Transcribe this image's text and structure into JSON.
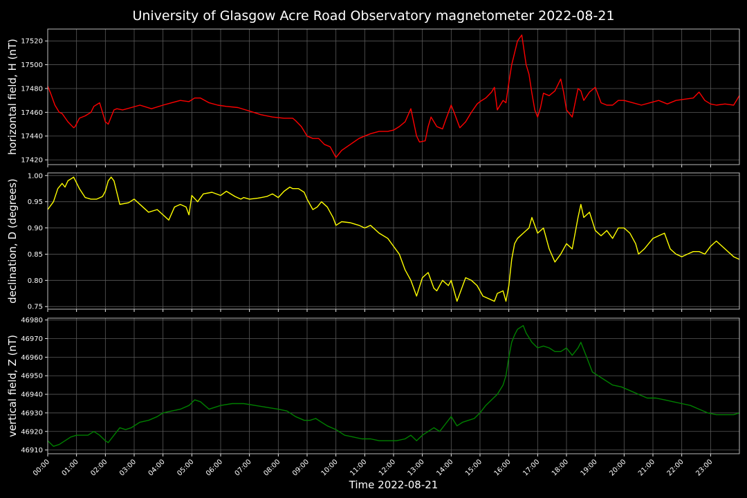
{
  "chart_data": {
    "type": "line",
    "title": "University of Glasgow Acre Road Observatory magnetometer 2022-08-21",
    "xlabel": "Time 2022-08-21",
    "x_unit": "hours",
    "xlim": [
      0,
      24
    ],
    "xticks": [
      0,
      1,
      2,
      3,
      4,
      5,
      6,
      7,
      8,
      9,
      10,
      11,
      12,
      13,
      14,
      15,
      16,
      17,
      18,
      19,
      20,
      21,
      22,
      23
    ],
    "xtick_labels": [
      "00:00",
      "01:00",
      "02:00",
      "03:00",
      "04:00",
      "05:00",
      "06:00",
      "07:00",
      "08:00",
      "09:00",
      "10:00",
      "11:00",
      "12:00",
      "13:00",
      "14:00",
      "15:00",
      "16:00",
      "17:00",
      "18:00",
      "19:00",
      "20:00",
      "21:00",
      "22:00",
      "23:00"
    ],
    "grid": true,
    "panels": [
      {
        "ylabel": "horizontal field, H (nT)",
        "color": "#ff0000",
        "ylim": [
          17416,
          17530
        ],
        "yticks": [
          17420,
          17440,
          17460,
          17480,
          17500,
          17520
        ],
        "ytick_labels": [
          "17420",
          "17440",
          "17460",
          "17480",
          "17500",
          "17520"
        ],
        "series": {
          "x": [
            0,
            0.1,
            0.25,
            0.4,
            0.5,
            0.7,
            0.9,
            0.95,
            1.1,
            1.3,
            1.5,
            1.6,
            1.8,
            1.9,
            2.0,
            2.1,
            2.3,
            2.4,
            2.6,
            2.9,
            3.2,
            3.6,
            4.0,
            4.3,
            4.6,
            4.9,
            5.1,
            5.3,
            5.6,
            5.9,
            6.2,
            6.6,
            7.0,
            7.4,
            7.8,
            8.2,
            8.5,
            8.6,
            8.8,
            9.0,
            9.2,
            9.4,
            9.6,
            9.8,
            10.0,
            10.2,
            10.5,
            10.8,
            11.0,
            11.2,
            11.5,
            11.8,
            12.0,
            12.2,
            12.4,
            12.6,
            12.8,
            12.9,
            13.1,
            13.2,
            13.3,
            13.5,
            13.7,
            13.8,
            14.0,
            14.1,
            14.3,
            14.5,
            14.7,
            14.9,
            15.0,
            15.2,
            15.4,
            15.5,
            15.6,
            15.8,
            15.9,
            16.0,
            16.1,
            16.2,
            16.3,
            16.45,
            16.6,
            16.7,
            16.8,
            16.9,
            17.0,
            17.1,
            17.2,
            17.4,
            17.6,
            17.8,
            17.9,
            18.0,
            18.2,
            18.4,
            18.5,
            18.6,
            18.8,
            19.0,
            19.2,
            19.4,
            19.6,
            19.8,
            20.0,
            20.3,
            20.6,
            20.9,
            21.2,
            21.5,
            21.8,
            22.1,
            22.4,
            22.6,
            22.8,
            23.0,
            23.2,
            23.5,
            23.8,
            24.0
          ],
          "y": [
            17482,
            17476,
            17466,
            17460,
            17459,
            17452,
            17447,
            17448,
            17455,
            17457,
            17460,
            17465,
            17468,
            17460,
            17452,
            17450,
            17462,
            17463,
            17462,
            17464,
            17466,
            17463,
            17466,
            17468,
            17470,
            17469,
            17472,
            17472,
            17468,
            17466,
            17465,
            17464,
            17461,
            17458,
            17456,
            17455,
            17455,
            17453,
            17448,
            17440,
            17438,
            17438,
            17433,
            17431,
            17422,
            17428,
            17433,
            17438,
            17440,
            17442,
            17444,
            17444,
            17445,
            17448,
            17452,
            17463,
            17440,
            17435,
            17436,
            17448,
            17456,
            17448,
            17446,
            17453,
            17466,
            17460,
            17447,
            17452,
            17460,
            17467,
            17469,
            17472,
            17477,
            17481,
            17462,
            17470,
            17468,
            17485,
            17500,
            17510,
            17520,
            17525,
            17500,
            17492,
            17476,
            17462,
            17456,
            17464,
            17476,
            17474,
            17478,
            17488,
            17477,
            17462,
            17456,
            17480,
            17478,
            17470,
            17477,
            17481,
            17468,
            17466,
            17466,
            17470,
            17470,
            17468,
            17466,
            17468,
            17470,
            17467,
            17470,
            17471,
            17472,
            17477,
            17470,
            17467,
            17466,
            17467,
            17466,
            17474
          ]
        }
      },
      {
        "ylabel": "declination, D (degrees)",
        "color": "#ffff00",
        "ylim": [
          0.745,
          1.005
        ],
        "yticks": [
          0.75,
          0.8,
          0.85,
          0.9,
          0.95,
          1.0
        ],
        "ytick_labels": [
          "0.75",
          "0.80",
          "0.85",
          "0.90",
          "0.95",
          "1.00"
        ],
        "series": {
          "x": [
            0,
            0.2,
            0.35,
            0.5,
            0.6,
            0.7,
            0.9,
            1.1,
            1.3,
            1.5,
            1.7,
            1.9,
            2.0,
            2.1,
            2.2,
            2.3,
            2.5,
            2.8,
            3.0,
            3.3,
            3.5,
            3.8,
            4.0,
            4.2,
            4.4,
            4.6,
            4.8,
            4.9,
            5.0,
            5.2,
            5.4,
            5.7,
            6.0,
            6.2,
            6.5,
            6.7,
            6.8,
            7.0,
            7.3,
            7.6,
            7.8,
            8.0,
            8.2,
            8.4,
            8.5,
            8.7,
            8.9,
            9.0,
            9.2,
            9.35,
            9.5,
            9.7,
            9.9,
            10.0,
            10.2,
            10.5,
            10.8,
            11.0,
            11.2,
            11.5,
            11.8,
            12.0,
            12.2,
            12.4,
            12.6,
            12.8,
            13.0,
            13.2,
            13.4,
            13.5,
            13.7,
            13.9,
            14.0,
            14.2,
            14.5,
            14.7,
            14.9,
            15.1,
            15.3,
            15.5,
            15.6,
            15.8,
            15.9,
            16.0,
            16.1,
            16.2,
            16.3,
            16.5,
            16.7,
            16.8,
            17.0,
            17.2,
            17.4,
            17.6,
            17.8,
            18.0,
            18.2,
            18.4,
            18.5,
            18.6,
            18.8,
            19.0,
            19.2,
            19.4,
            19.6,
            19.8,
            20.0,
            20.2,
            20.4,
            20.5,
            20.7,
            21.0,
            21.2,
            21.4,
            21.6,
            21.8,
            22.0,
            22.2,
            22.4,
            22.6,
            22.8,
            23.0,
            23.2,
            23.5,
            23.8,
            24.0
          ],
          "y": [
            0.935,
            0.95,
            0.975,
            0.985,
            0.978,
            0.99,
            0.997,
            0.975,
            0.958,
            0.955,
            0.955,
            0.96,
            0.97,
            0.99,
            0.997,
            0.99,
            0.945,
            0.948,
            0.955,
            0.94,
            0.93,
            0.935,
            0.925,
            0.915,
            0.94,
            0.945,
            0.94,
            0.925,
            0.962,
            0.95,
            0.965,
            0.968,
            0.962,
            0.97,
            0.96,
            0.955,
            0.958,
            0.955,
            0.957,
            0.96,
            0.965,
            0.958,
            0.97,
            0.978,
            0.975,
            0.975,
            0.968,
            0.955,
            0.935,
            0.94,
            0.95,
            0.94,
            0.92,
            0.905,
            0.912,
            0.91,
            0.905,
            0.9,
            0.905,
            0.89,
            0.88,
            0.865,
            0.85,
            0.82,
            0.8,
            0.77,
            0.805,
            0.815,
            0.785,
            0.78,
            0.8,
            0.79,
            0.8,
            0.76,
            0.805,
            0.8,
            0.79,
            0.77,
            0.765,
            0.76,
            0.775,
            0.78,
            0.76,
            0.79,
            0.84,
            0.87,
            0.88,
            0.89,
            0.9,
            0.92,
            0.89,
            0.9,
            0.86,
            0.835,
            0.85,
            0.87,
            0.86,
            0.92,
            0.945,
            0.92,
            0.93,
            0.895,
            0.885,
            0.895,
            0.88,
            0.9,
            0.9,
            0.89,
            0.87,
            0.85,
            0.86,
            0.88,
            0.885,
            0.89,
            0.86,
            0.85,
            0.845,
            0.85,
            0.855,
            0.855,
            0.85,
            0.865,
            0.875,
            0.86,
            0.845,
            0.84
          ]
        }
      },
      {
        "ylabel": "vertical field, Z (nT)",
        "color": "#008000",
        "ylim": [
          46908,
          46981
        ],
        "yticks": [
          46910,
          46920,
          46930,
          46940,
          46950,
          46960,
          46970,
          46980
        ],
        "ytick_labels": [
          "46910",
          "46920",
          "46930",
          "46940",
          "46950",
          "46960",
          "46970",
          "46980"
        ],
        "series": {
          "x": [
            0,
            0.2,
            0.4,
            0.6,
            0.8,
            1.0,
            1.2,
            1.4,
            1.6,
            1.8,
            2.0,
            2.1,
            2.3,
            2.5,
            2.7,
            2.9,
            3.2,
            3.5,
            3.8,
            4.0,
            4.3,
            4.6,
            4.9,
            5.1,
            5.3,
            5.6,
            6.0,
            6.4,
            6.8,
            7.2,
            7.6,
            8.0,
            8.3,
            8.6,
            8.9,
            9.1,
            9.3,
            9.5,
            9.7,
            10.0,
            10.3,
            10.6,
            10.9,
            11.2,
            11.5,
            11.8,
            12.1,
            12.4,
            12.6,
            12.8,
            13.0,
            13.2,
            13.4,
            13.6,
            13.8,
            14.0,
            14.2,
            14.4,
            14.6,
            14.8,
            15.0,
            15.2,
            15.4,
            15.6,
            15.8,
            15.9,
            16.0,
            16.1,
            16.2,
            16.3,
            16.5,
            16.6,
            16.8,
            17.0,
            17.2,
            17.4,
            17.6,
            17.8,
            18.0,
            18.2,
            18.4,
            18.5,
            18.7,
            18.9,
            19.1,
            19.3,
            19.6,
            19.9,
            20.2,
            20.5,
            20.8,
            21.1,
            21.4,
            21.7,
            22.0,
            22.3,
            22.6,
            22.9,
            23.2,
            23.5,
            23.8,
            24.0
          ],
          "y": [
            46915,
            46912,
            46913,
            46915,
            46917,
            46918,
            46918,
            46918,
            46920,
            46918,
            46915,
            46914,
            46918,
            46922,
            46921,
            46922,
            46925,
            46926,
            46928,
            46930,
            46931,
            46932,
            46934,
            46937,
            46936,
            46932,
            46934,
            46935,
            46935,
            46934,
            46933,
            46932,
            46931,
            46928,
            46926,
            46926,
            46927,
            46925,
            46923,
            46921,
            46918,
            46917,
            46916,
            46916,
            46915,
            46915,
            46915,
            46916,
            46918,
            46915,
            46918,
            46920,
            46922,
            46920,
            46924,
            46928,
            46923,
            46925,
            46926,
            46927,
            46930,
            46934,
            46937,
            46940,
            46945,
            46950,
            46960,
            46968,
            46972,
            46975,
            46977,
            46973,
            46968,
            46965,
            46966,
            46965,
            46963,
            46963,
            46965,
            46961,
            46965,
            46968,
            46960,
            46952,
            46950,
            46948,
            46945,
            46944,
            46942,
            46940,
            46938,
            46938,
            46937,
            46936,
            46935,
            46934,
            46932,
            46930,
            46929,
            46929,
            46929,
            46930
          ]
        }
      }
    ]
  }
}
